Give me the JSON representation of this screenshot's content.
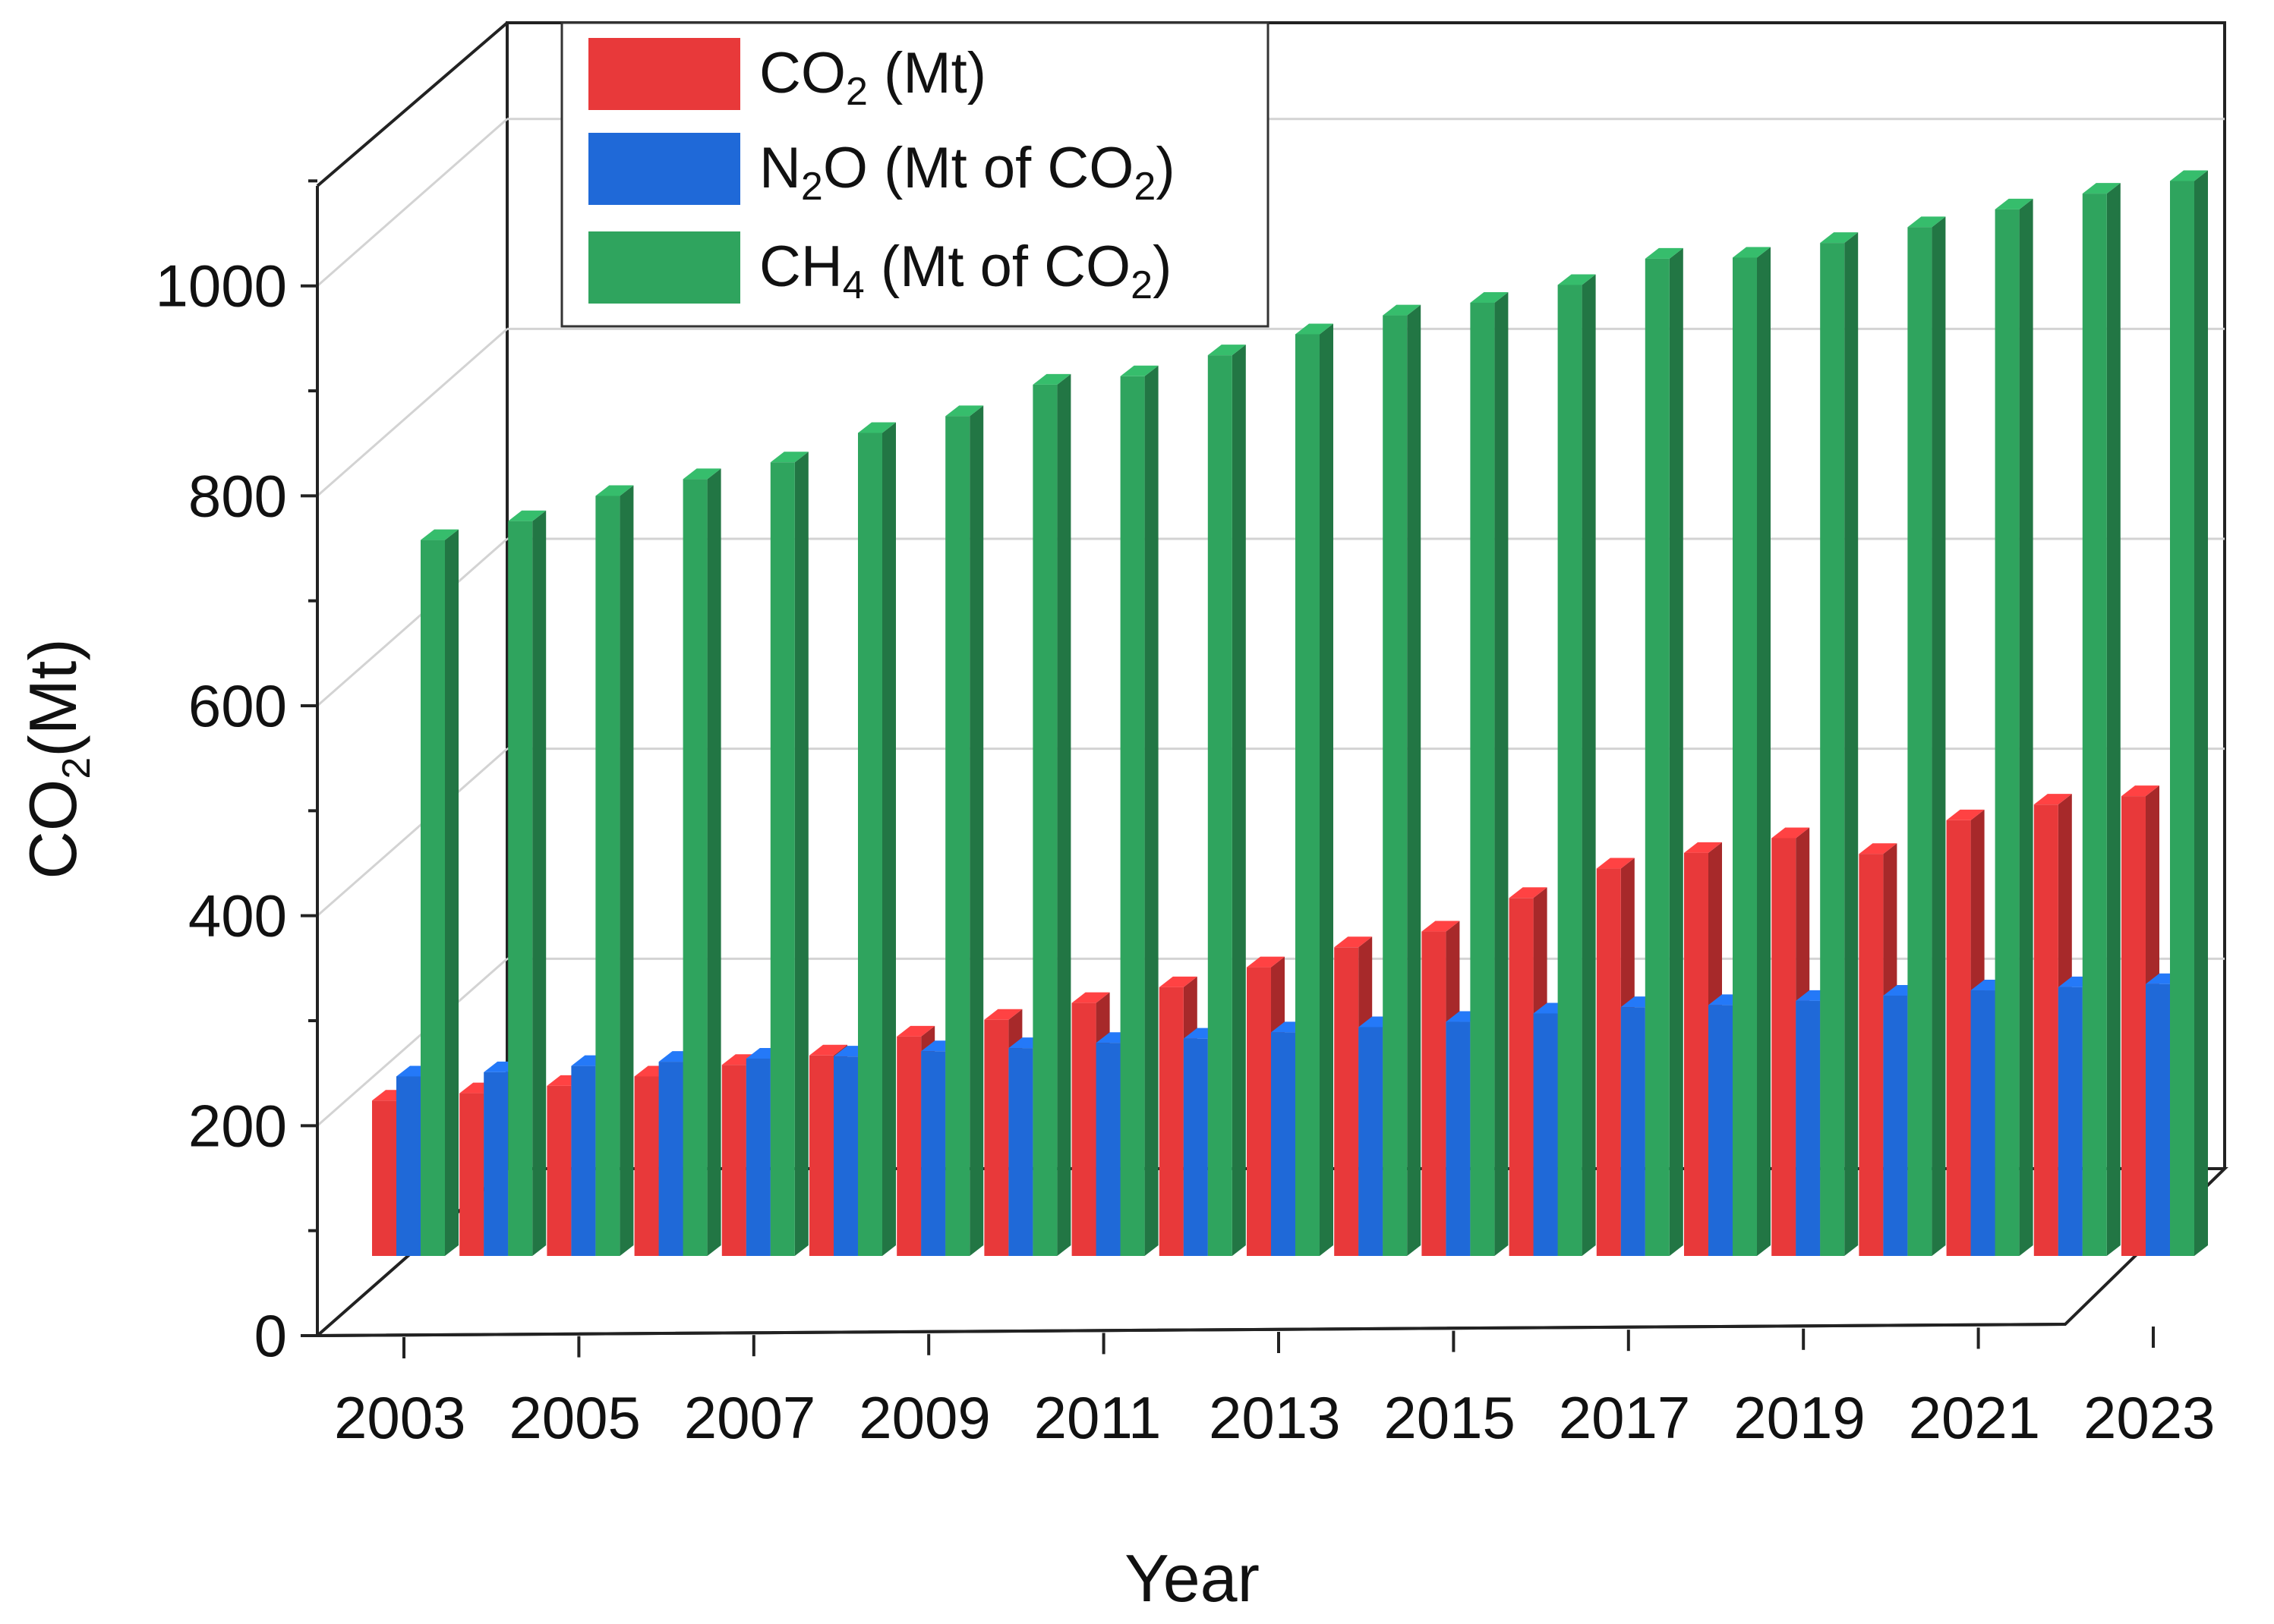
{
  "chart_data": {
    "type": "bar",
    "style": "3d-clustered",
    "title": "",
    "xlabel": "Year",
    "ylabel": {
      "main": "CO",
      "sub": "2",
      "rest": "(Mt)"
    },
    "ylim": [
      0,
      1100
    ],
    "yticks": [
      0,
      200,
      400,
      600,
      800,
      1000
    ],
    "ytick_labels": [
      "0",
      "200",
      "400",
      "600",
      "800",
      "1000"
    ],
    "categories": [
      "2003",
      "2004",
      "2005",
      "2006",
      "2007",
      "2008",
      "2009",
      "2010",
      "2011",
      "2012",
      "2013",
      "2014",
      "2015",
      "2016",
      "2017",
      "2018",
      "2019",
      "2020",
      "2021",
      "2022",
      "2023"
    ],
    "xtick_labels": [
      "2003",
      "2005",
      "2007",
      "2009",
      "2011",
      "2013",
      "2015",
      "2017",
      "2019",
      "2021",
      "2023"
    ],
    "grid": true,
    "legend_position": "top-left",
    "series": [
      {
        "name": "CO2 (Mt)",
        "legend": {
          "pre": "CO",
          "sub": "2",
          "post": " (Mt)"
        },
        "color": "#e8393a",
        "values": [
          148,
          155,
          162,
          171,
          182,
          191,
          209,
          225,
          241,
          256,
          275,
          294,
          309,
          341,
          369,
          384,
          398,
          383,
          415,
          430,
          438
        ]
      },
      {
        "name": "N2O (Mt of CO2)",
        "legend": {
          "pre": "N",
          "sub": "2",
          "post": "O (Mt of CO",
          "sub2": "2",
          "post2": ")"
        },
        "color": "#1f69d8",
        "values": [
          171,
          175,
          181,
          185,
          188,
          190,
          195,
          198,
          203,
          207,
          213,
          218,
          223,
          231,
          237,
          239,
          243,
          248,
          253,
          256,
          259
        ]
      },
      {
        "name": "CH4 (Mt of CO2)",
        "legend": {
          "pre": "CH",
          "sub": "4",
          "post": " (Mt of CO",
          "sub2": "2",
          "post2": ")"
        },
        "color": "#2fa45e",
        "values": [
          682,
          700,
          724,
          740,
          756,
          784,
          800,
          830,
          838,
          858,
          878,
          896,
          908,
          925,
          950,
          951,
          965,
          980,
          997,
          1012,
          1024
        ]
      }
    ]
  }
}
